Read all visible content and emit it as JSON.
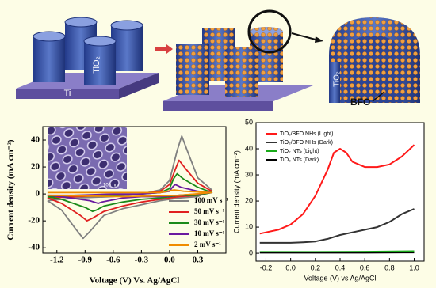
{
  "schematic": {
    "substrate": "Ti",
    "tube": "TiO₂",
    "cut_tube": "TiO₂",
    "particle": "BFO"
  },
  "chart_data": [
    {
      "type": "line",
      "ylabel": "Current density (mA cm⁻²)",
      "xlabel": "Voltage (V) Vs. Ag/AgCl",
      "inset_label": "100 nm",
      "xlim": [
        -1.35,
        0.6
      ],
      "ylim": [
        -44,
        50
      ],
      "xticks": [
        -1.2,
        -0.9,
        -0.6,
        -0.3,
        {
          "value": 0,
          "label": "0.0"
        },
        0.3
      ],
      "yticks": [
        -40,
        -20,
        0,
        20,
        40
      ],
      "legend": "lower right",
      "series": [
        {
          "name": "100 mV s⁻¹",
          "color": "#808080",
          "x": [
            -1.3,
            -1.0,
            -0.6,
            -0.3,
            -0.1,
            0.0,
            0.08,
            0.13,
            0.2,
            0.3,
            0.45,
            0.3,
            0.1,
            -0.1,
            -0.3,
            -0.5,
            -0.7,
            -0.85,
            -0.92,
            -1.0,
            -1.15,
            -1.3
          ],
          "values": [
            -5,
            -3,
            -2,
            0,
            3,
            10,
            32,
            43,
            30,
            12,
            3,
            -2,
            -3,
            -5,
            -8,
            -11,
            -16,
            -28,
            -33,
            -26,
            -12,
            -5
          ]
        },
        {
          "name": "50 mV s⁻¹",
          "color": "#e02020",
          "x": [
            -1.3,
            -1.0,
            -0.6,
            -0.3,
            -0.1,
            0.0,
            0.06,
            0.1,
            0.18,
            0.3,
            0.45,
            0.3,
            0.1,
            -0.1,
            -0.3,
            -0.5,
            -0.7,
            -0.82,
            -0.88,
            -0.95,
            -1.15,
            -1.3
          ],
          "values": [
            -3,
            -2,
            -1,
            0,
            2,
            7,
            18,
            25,
            18,
            8,
            2,
            -1,
            -2,
            -4,
            -6,
            -9,
            -13,
            -18,
            -20,
            -16,
            -7,
            -3
          ]
        },
        {
          "name": "30 mV s⁻¹",
          "color": "#1a8a1a",
          "x": [
            -1.3,
            -1.0,
            -0.6,
            -0.3,
            -0.1,
            0.0,
            0.04,
            0.08,
            0.15,
            0.3,
            0.45,
            0.3,
            0.1,
            -0.1,
            -0.3,
            -0.5,
            -0.7,
            -0.78,
            -0.82,
            -0.9,
            -1.15,
            -1.3
          ],
          "values": [
            -2,
            -1,
            -1,
            0,
            1,
            4,
            11,
            15,
            11,
            5,
            1,
            -1,
            -1,
            -3,
            -4,
            -6,
            -9,
            -12,
            -13,
            -10,
            -4,
            -2
          ]
        },
        {
          "name": "10 mV s⁻¹",
          "color": "#6a1aa0",
          "x": [
            -1.3,
            -1.0,
            -0.6,
            -0.3,
            -0.1,
            0.0,
            0.03,
            0.06,
            0.12,
            0.3,
            0.45,
            0.3,
            0.1,
            -0.1,
            -0.3,
            -0.5,
            -0.65,
            -0.72,
            -0.76,
            -0.85,
            -1.15,
            -1.3
          ],
          "values": [
            -1,
            -1,
            0,
            0,
            1,
            2,
            5,
            7,
            5,
            2,
            1,
            0,
            -1,
            -2,
            -2,
            -3,
            -5,
            -6,
            -7,
            -5,
            -2,
            -1
          ]
        },
        {
          "name": "2 mV s⁻¹",
          "color": "#f08c00",
          "x": [
            -1.3,
            -0.6,
            -0.1,
            0.05,
            0.15,
            0.45,
            0.1,
            -0.5,
            -1.3
          ],
          "values": [
            1,
            1,
            1,
            3,
            2,
            1,
            -1,
            -2,
            -1
          ]
        }
      ]
    },
    {
      "type": "line",
      "ylabel": "Current density (mA cm⁻²)",
      "xlabel": "Voltage (V) vs Ag/AgCl",
      "xlim": [
        -0.28,
        1.08
      ],
      "ylim": [
        -3,
        50
      ],
      "xticks": [
        -0.2,
        {
          "value": 0,
          "label": "0.0"
        },
        0.2,
        0.4,
        0.6,
        0.8,
        {
          "value": 1,
          "label": "1.0"
        }
      ],
      "yticks": [
        0,
        10,
        20,
        30,
        40,
        50
      ],
      "legend": "upper left",
      "series": [
        {
          "name": "TiO₂/BFO NHs (Light)",
          "color": "#ff1a1a",
          "x": [
            -0.25,
            -0.2,
            -0.1,
            0.0,
            0.1,
            0.2,
            0.3,
            0.35,
            0.4,
            0.45,
            0.5,
            0.6,
            0.7,
            0.8,
            0.9,
            1.0
          ],
          "values": [
            7.5,
            8,
            9,
            11,
            15,
            22,
            32,
            38.5,
            40,
            38.5,
            35,
            33,
            33,
            34,
            37,
            41.5
          ]
        },
        {
          "name": "TiO₂/BFO NHs (Dark)",
          "color": "#333333",
          "x": [
            -0.25,
            -0.1,
            0.0,
            0.1,
            0.2,
            0.3,
            0.4,
            0.5,
            0.6,
            0.7,
            0.8,
            0.9,
            1.0
          ],
          "values": [
            4,
            4,
            4,
            4.2,
            4.5,
            5.5,
            7,
            8,
            9,
            10,
            12,
            15,
            17
          ]
        },
        {
          "name": "TiO₂ NTs (Light)",
          "color": "#1aaa1a",
          "x": [
            -0.25,
            0.2,
            0.6,
            1.0
          ],
          "values": [
            0.5,
            0.5,
            0.6,
            0.8
          ]
        },
        {
          "name": "TiO₂ NTs (Dark)",
          "color": "#000000",
          "x": [
            -0.25,
            0.2,
            0.6,
            1.0
          ],
          "values": [
            0.2,
            0.2,
            0.2,
            0.3
          ]
        }
      ]
    }
  ]
}
